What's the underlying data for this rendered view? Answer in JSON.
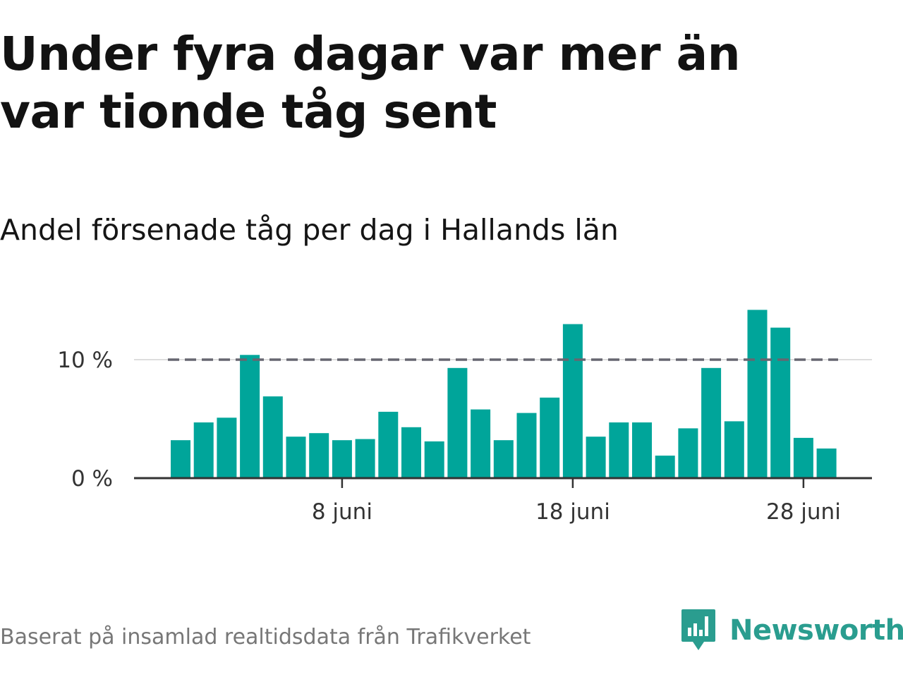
{
  "header": {
    "title": "Under fyra dagar var mer än var tionde tåg sent",
    "subtitle": "Andel försenade tåg per dag i Hallands län"
  },
  "footer": {
    "source": "Baserat på insamlad realtidsdata från Trafikverket",
    "brand": "Newsworthy"
  },
  "colors": {
    "bar": "#00a59a",
    "reference_line": "#666670",
    "gridline": "#dddddd",
    "axis": "#333333",
    "brand": "#2a9d8f"
  },
  "chart_data": {
    "type": "bar",
    "x_unit": "day of June",
    "x": [
      1,
      2,
      3,
      4,
      5,
      6,
      7,
      8,
      9,
      10,
      11,
      12,
      13,
      14,
      15,
      16,
      17,
      18,
      19,
      20,
      21,
      22,
      23,
      24,
      25,
      26,
      27,
      28,
      29
    ],
    "series": [
      {
        "values": [
          3.2,
          4.7,
          5.1,
          10.4,
          6.9,
          3.5,
          3.8,
          3.2,
          3.3,
          5.6,
          4.3,
          3.1,
          9.3,
          5.8,
          3.2,
          5.5,
          6.8,
          13.0,
          3.5,
          4.7,
          4.7,
          1.9,
          4.2,
          9.3,
          4.8,
          14.2,
          12.7,
          3.4,
          2.5
        ]
      }
    ],
    "reference_line": {
      "value": 10,
      "style": "dashed"
    },
    "ylim": [
      0,
      15
    ],
    "y_ticks": [
      {
        "value": 0,
        "label": "0 %"
      },
      {
        "value": 10,
        "label": "10 %"
      }
    ],
    "x_ticks": [
      {
        "value": 8,
        "label": "8 juni"
      },
      {
        "value": 18,
        "label": "18 juni"
      },
      {
        "value": 28,
        "label": "28 juni"
      }
    ],
    "grid": "horizontal at labelled y ticks",
    "legend": "none"
  }
}
